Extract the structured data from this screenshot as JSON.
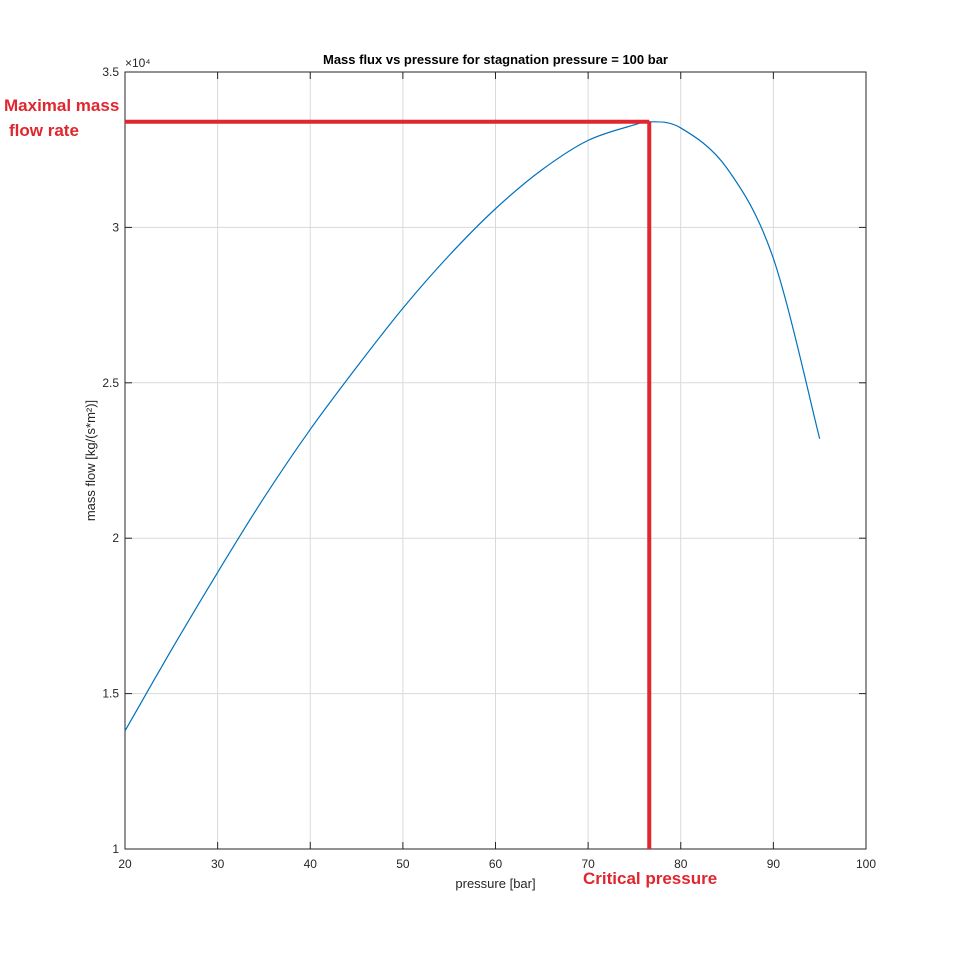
{
  "chart_data": {
    "type": "line",
    "title": "Mass flux vs pressure for stagnation pressure = 100 bar",
    "xlabel": "pressure [bar]",
    "ylabel": "mass flow [kg/(s*m²)]",
    "xlim": [
      20,
      100
    ],
    "ylim": [
      10000,
      35000
    ],
    "x_ticks": [
      20,
      30,
      40,
      50,
      60,
      70,
      80,
      90,
      100
    ],
    "y_ticks": [
      10000,
      15000,
      20000,
      25000,
      30000,
      35000
    ],
    "y_tick_labels": [
      "1",
      "1.5",
      "2",
      "2.5",
      "3",
      "3.5"
    ],
    "y_exponent_label": "×10⁴",
    "grid": true,
    "series": [
      {
        "color": "#0072BD",
        "x": [
          20,
          25,
          30,
          35,
          40,
          45,
          50,
          55,
          60,
          65,
          70,
          75,
          76.6,
          80,
          85,
          90,
          95
        ],
        "y": [
          13800,
          16400,
          18900,
          21300,
          23500,
          25500,
          27400,
          29100,
          30600,
          31850,
          32800,
          33300,
          33400,
          33200,
          31900,
          29000,
          23200
        ]
      }
    ],
    "annotations": {
      "color": "#E0262E",
      "max_label_line1": "Maximal mass",
      "max_label_line2": "flow rate",
      "max_value": 33400,
      "critical_label": "Critical pressure",
      "critical_pressure": 76.6
    }
  }
}
